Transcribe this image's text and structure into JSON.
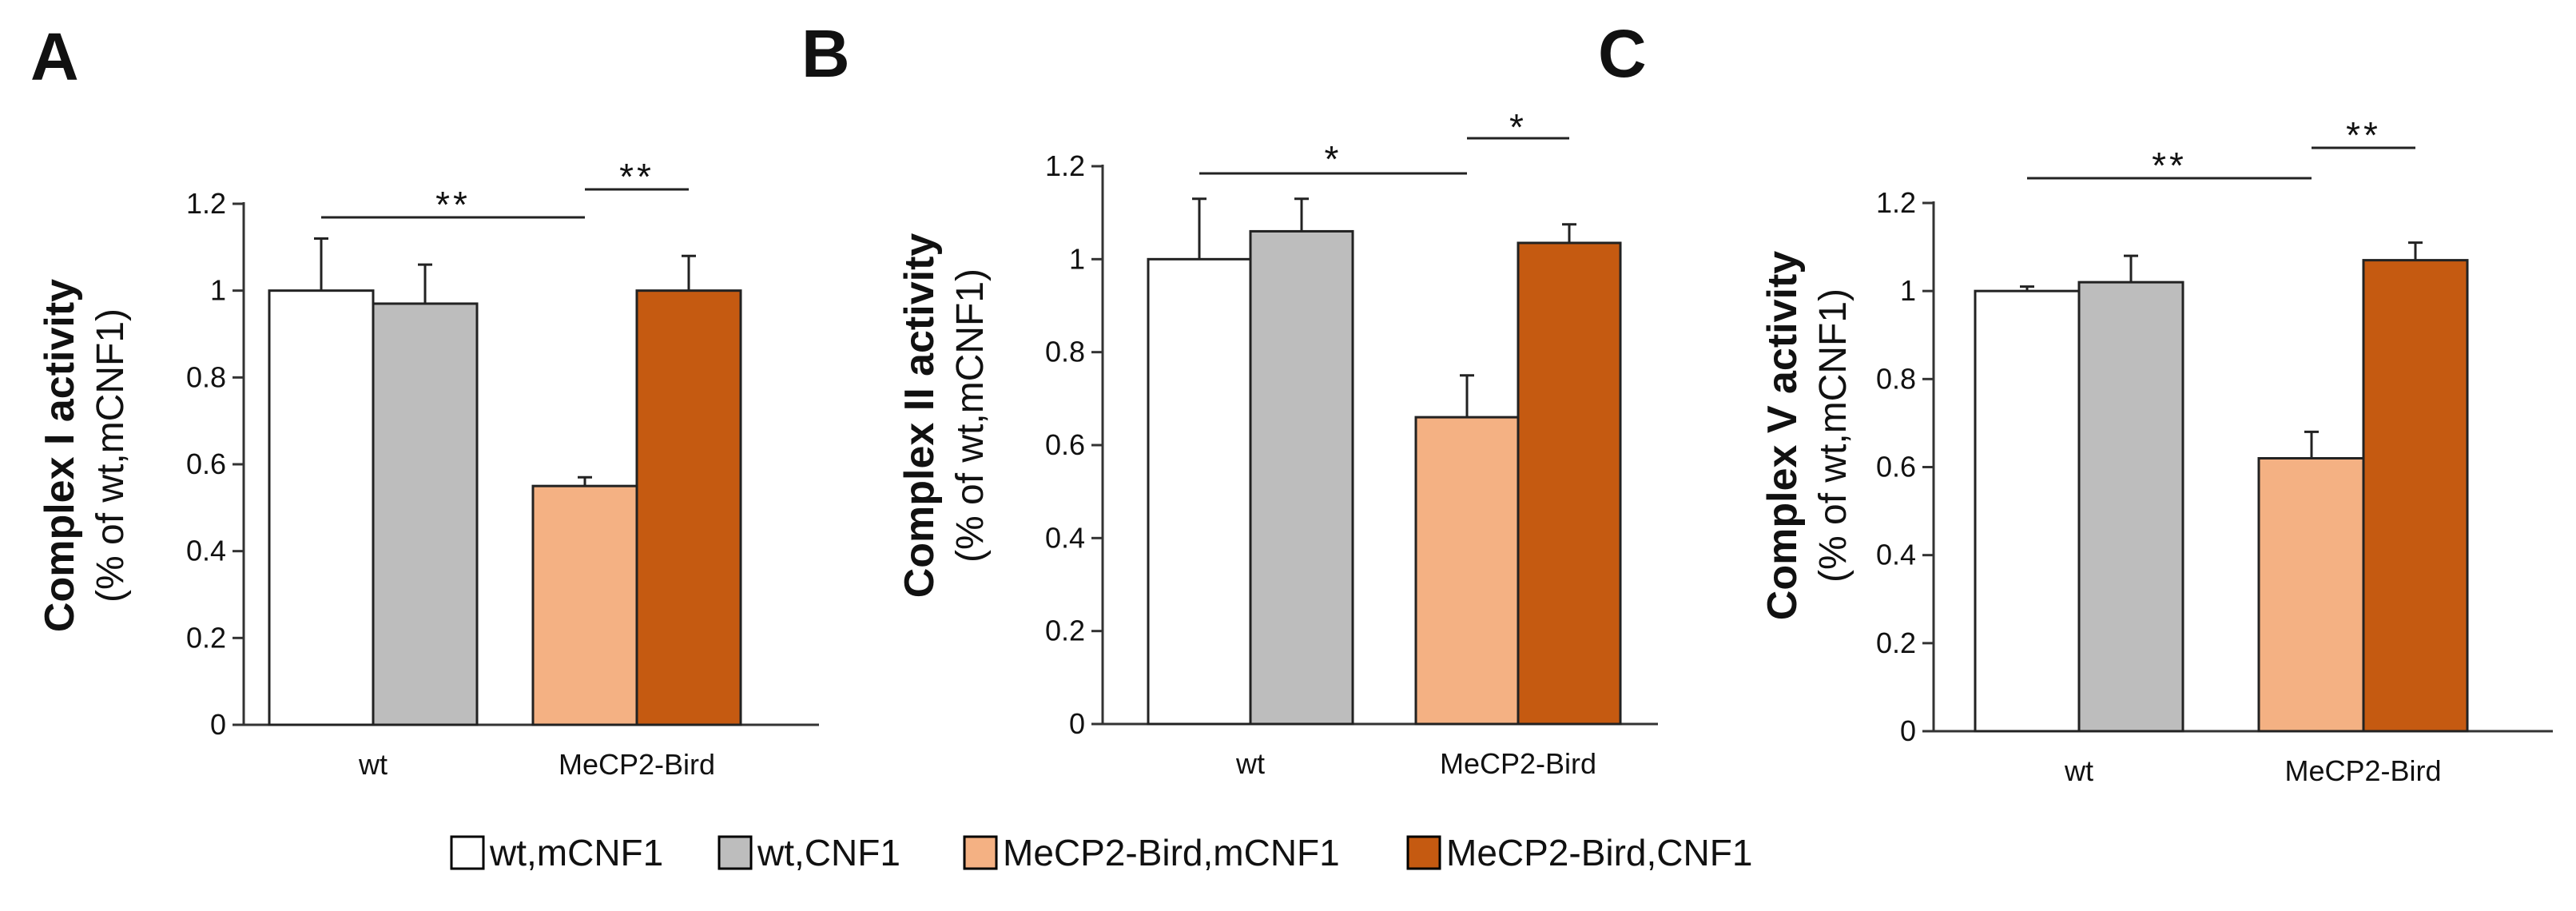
{
  "chart_data": [
    {
      "type": "bar",
      "panel": "A",
      "ylabel": "Complex I activity",
      "ylabel_sub": "(% of wt,mCNF1)",
      "categories": [
        "wt",
        "MeCP2-Bird"
      ],
      "ylim": [
        0,
        1.2
      ],
      "yticks": [
        "0",
        "0.2",
        "0.4",
        "0.6",
        "0.8",
        "1",
        "1.2"
      ],
      "series": [
        {
          "name": "wt,mCNF1",
          "values": [
            1.0,
            null
          ],
          "errors": [
            0.12,
            null
          ]
        },
        {
          "name": "wt,CNF1",
          "values": [
            0.97,
            null
          ],
          "errors": [
            0.09,
            null
          ]
        },
        {
          "name": "MeCP2-Bird,mCNF1",
          "values": [
            null,
            0.55
          ],
          "errors": [
            null,
            0.02
          ]
        },
        {
          "name": "MeCP2-Bird,CNF1",
          "values": [
            null,
            1.0
          ],
          "errors": [
            null,
            0.08
          ]
        }
      ],
      "significance": [
        {
          "label": "**",
          "from": "wt,mCNF1",
          "to": "MeCP2-Bird,mCNF1"
        },
        {
          "label": "**",
          "from": "MeCP2-Bird,mCNF1",
          "to": "MeCP2-Bird,CNF1"
        }
      ]
    },
    {
      "type": "bar",
      "panel": "B",
      "ylabel": "Complex II activity",
      "ylabel_sub": "(% of wt,mCNF1)",
      "categories": [
        "wt",
        "MeCP2-Bird"
      ],
      "ylim": [
        0,
        1.2
      ],
      "yticks": [
        "0",
        "0.2",
        "0.4",
        "0.6",
        "0.8",
        "1",
        "1.2"
      ],
      "series": [
        {
          "name": "wt,mCNF1",
          "values": [
            1.0,
            null
          ],
          "errors": [
            0.13,
            null
          ]
        },
        {
          "name": "wt,CNF1",
          "values": [
            1.06,
            null
          ],
          "errors": [
            0.07,
            null
          ]
        },
        {
          "name": "MeCP2-Bird,mCNF1",
          "values": [
            null,
            0.66
          ],
          "errors": [
            null,
            0.09
          ]
        },
        {
          "name": "MeCP2-Bird,CNF1",
          "values": [
            null,
            1.035
          ],
          "errors": [
            null,
            0.04
          ]
        }
      ],
      "significance": [
        {
          "label": "*",
          "from": "wt,mCNF1",
          "to": "MeCP2-Bird,mCNF1"
        },
        {
          "label": "*",
          "from": "MeCP2-Bird,mCNF1",
          "to": "MeCP2-Bird,CNF1"
        }
      ]
    },
    {
      "type": "bar",
      "panel": "C",
      "ylabel": "Complex V activity",
      "ylabel_sub": "(% of wt,mCNF1)",
      "categories": [
        "wt",
        "MeCP2-Bird"
      ],
      "ylim": [
        0,
        1.2
      ],
      "yticks": [
        "0",
        "0.2",
        "0.4",
        "0.6",
        "0.8",
        "1",
        "1.2"
      ],
      "series": [
        {
          "name": "wt,mCNF1",
          "values": [
            1.0,
            null
          ],
          "errors": [
            0.01,
            null
          ]
        },
        {
          "name": "wt,CNF1",
          "values": [
            1.02,
            null
          ],
          "errors": [
            0.06,
            null
          ]
        },
        {
          "name": "MeCP2-Bird,mCNF1",
          "values": [
            null,
            0.62
          ],
          "errors": [
            null,
            0.06
          ]
        },
        {
          "name": "MeCP2-Bird,CNF1",
          "values": [
            null,
            1.07
          ],
          "errors": [
            null,
            0.04
          ]
        }
      ],
      "significance": [
        {
          "label": "**",
          "from": "wt,mCNF1",
          "to": "MeCP2-Bird,mCNF1"
        },
        {
          "label": "**",
          "from": "MeCP2-Bird,mCNF1",
          "to": "MeCP2-Bird,CNF1"
        }
      ]
    }
  ],
  "legend": [
    {
      "label": "wt,mCNF1",
      "color": "#ffffff"
    },
    {
      "label": "wt,CNF1",
      "color": "#bdbdbd"
    },
    {
      "label": "MeCP2-Bird,mCNF1",
      "color": "#f4b183"
    },
    {
      "label": "MeCP2-Bird,CNF1",
      "color": "#c55a11"
    }
  ]
}
